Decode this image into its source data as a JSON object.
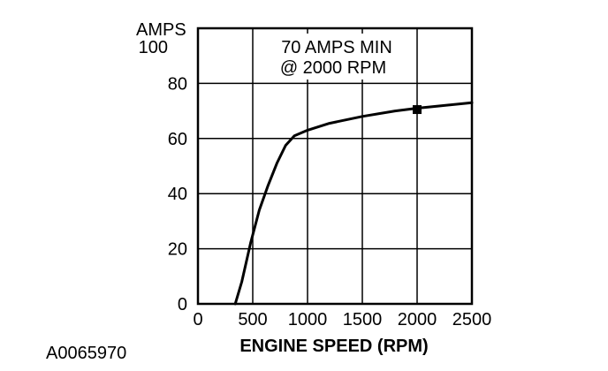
{
  "chart_data": {
    "type": "line",
    "title": "",
    "annotation_lines": [
      "70 AMPS MIN",
      "@ 2000 RPM"
    ],
    "xlabel": "ENGINE SPEED (RPM)",
    "ylabel": "AMPS",
    "xlim": [
      0,
      2500
    ],
    "ylim": [
      0,
      100
    ],
    "x_ticks": [
      0,
      500,
      1000,
      1500,
      2000,
      2500
    ],
    "y_ticks": [
      0,
      20,
      40,
      60,
      80,
      100
    ],
    "x_tick_labels": [
      "0",
      "500",
      "1000",
      "1500",
      "2000",
      "2500"
    ],
    "y_tick_labels": [
      "0",
      "20",
      "40",
      "60",
      "80",
      "100"
    ],
    "grid": true,
    "legend": "none",
    "series": [
      {
        "x": [
          340,
          400,
          480,
          560,
          640,
          720,
          800,
          880,
          1000,
          1200,
          1500,
          1800,
          2000,
          2200,
          2500
        ],
        "y": [
          0,
          8,
          22,
          34,
          43,
          51,
          57.5,
          61,
          63,
          65.5,
          68,
          70,
          71,
          71.8,
          73
        ]
      }
    ],
    "marker": {
      "x": 2000,
      "y": 70.5,
      "label": "70 AMPS MIN @ 2000 RPM"
    },
    "colors": {
      "line": "#000000",
      "grid": "#000000",
      "background": "#ffffff"
    }
  },
  "figure_id": "A0065970"
}
